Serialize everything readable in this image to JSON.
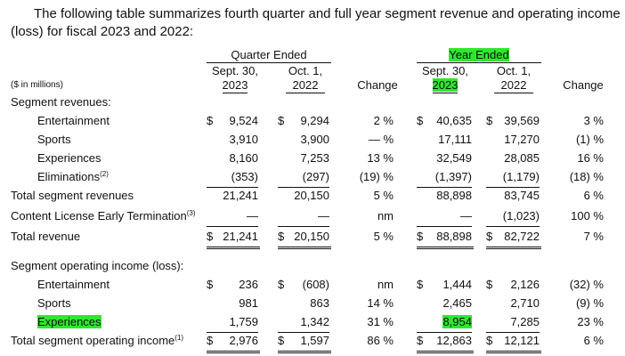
{
  "intro": "The following table summarizes fourth quarter and full year segment revenue and operating income\n(loss) for fiscal 2023 and 2022:",
  "header": {
    "quarter_ended": "Quarter Ended",
    "year_ended": "Year Ended",
    "q_cur_line1": "Sept. 30,",
    "q_cur_line2": "2023",
    "q_prev_line1": "Oct. 1,",
    "q_prev_line2": "2022",
    "change": "Change",
    "y_cur_line1": "Sept. 30,",
    "y_cur_line2": "2023",
    "y_prev_line1": "Oct. 1,",
    "y_prev_line2": "2022",
    "units": "($ in millions)"
  },
  "sections": {
    "revenues": "Segment revenues:",
    "opinc": "Segment operating income (loss):"
  },
  "rows": {
    "ent": {
      "label": "Entertainment",
      "q1": "9,524",
      "q2": "9,294",
      "qc": "2 %",
      "y1": "40,635",
      "y2": "39,569",
      "yc": "3 %"
    },
    "sports": {
      "label": "Sports",
      "q1": "3,910",
      "q2": "3,900",
      "qc": "— %",
      "y1": "17,111",
      "y2": "17,270",
      "yc": "(1) %"
    },
    "exp": {
      "label": "Experiences",
      "q1": "8,160",
      "q2": "7,253",
      "qc": "13 %",
      "y1": "32,549",
      "y2": "28,085",
      "yc": "16 %"
    },
    "elim": {
      "label": "Eliminations",
      "sup": "(2)",
      "q1": "(353)",
      "q2": "(297)",
      "qc": "(19) %",
      "y1": "(1,397)",
      "y2": "(1,179)",
      "yc": "(18) %"
    },
    "total_seg": {
      "label": "Total segment revenues",
      "q1": "21,241",
      "q2": "20,150",
      "qc": "5 %",
      "y1": "88,898",
      "y2": "83,745",
      "yc": "6 %"
    },
    "clet": {
      "label": "Content License Early Termination",
      "sup": "(3)",
      "q1": "—",
      "q2": "—",
      "qc": "nm",
      "y1": "—",
      "y2": "(1,023)",
      "yc": "100 %"
    },
    "total_rev": {
      "label": "Total revenue",
      "q1": "21,241",
      "q2": "20,150",
      "qc": "5 %",
      "y1": "88,898",
      "y2": "82,722",
      "yc": "7 %"
    },
    "oi_ent": {
      "label": "Entertainment",
      "q1": "236",
      "q2": "(608)",
      "qc": "nm",
      "y1": "1,444",
      "y2": "2,126",
      "yc": "(32) %"
    },
    "oi_sports": {
      "label": "Sports",
      "q1": "981",
      "q2": "863",
      "qc": "14 %",
      "y1": "2,465",
      "y2": "2,710",
      "yc": "(9) %"
    },
    "oi_exp": {
      "label": "Experiences",
      "q1": "1,759",
      "q2": "1,342",
      "qc": "31 %",
      "y1": "8,954",
      "y2": "7,285",
      "yc": "23 %"
    },
    "oi_total": {
      "label": "Total segment operating income",
      "sup": "(1)",
      "q1": "2,976",
      "q2": "1,597",
      "qc": "86 %",
      "y1": "12,863",
      "y2": "12,121",
      "yc": "6 %"
    }
  },
  "currency": "$",
  "highlight_color": "#2ee82e"
}
